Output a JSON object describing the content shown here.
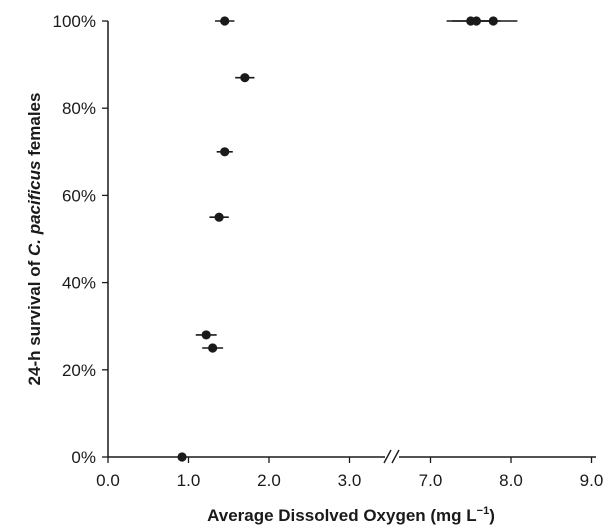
{
  "chart_data": {
    "type": "scatter",
    "title": "",
    "xlabel_main": "Average Dissolved Oxygen (mg L",
    "xlabel_sup": "−1",
    "xlabel_end": ")",
    "ylabel_pre": "24-h survival of ",
    "ylabel_species": "C. pacificus",
    "ylabel_post": " females",
    "x_ticks": [
      "0.0",
      "1.0",
      "2.0",
      "3.0",
      "7.0",
      "8.0",
      "9.0"
    ],
    "y_ticks": [
      "0%",
      "20%",
      "40%",
      "60%",
      "80%",
      "100%"
    ],
    "ylim": [
      0,
      100
    ],
    "x_axis_break": "between 3.0 and 7.0",
    "grid": false,
    "marker_color": "#1a1a1a",
    "points": [
      {
        "x": 1.45,
        "y": 100,
        "xerr": 0.12
      },
      {
        "x": 7.5,
        "y": 100,
        "xerr": 0.3
      },
      {
        "x": 7.57,
        "y": 100,
        "xerr": 0.3
      },
      {
        "x": 7.78,
        "y": 100,
        "xerr": 0.3
      },
      {
        "x": 1.7,
        "y": 87,
        "xerr": 0.12
      },
      {
        "x": 1.45,
        "y": 70,
        "xerr": 0.1
      },
      {
        "x": 1.38,
        "y": 55,
        "xerr": 0.12
      },
      {
        "x": 1.22,
        "y": 28,
        "xerr": 0.13
      },
      {
        "x": 1.3,
        "y": 25,
        "xerr": 0.13
      },
      {
        "x": 0.92,
        "y": 0,
        "xerr": 0.04
      }
    ]
  }
}
